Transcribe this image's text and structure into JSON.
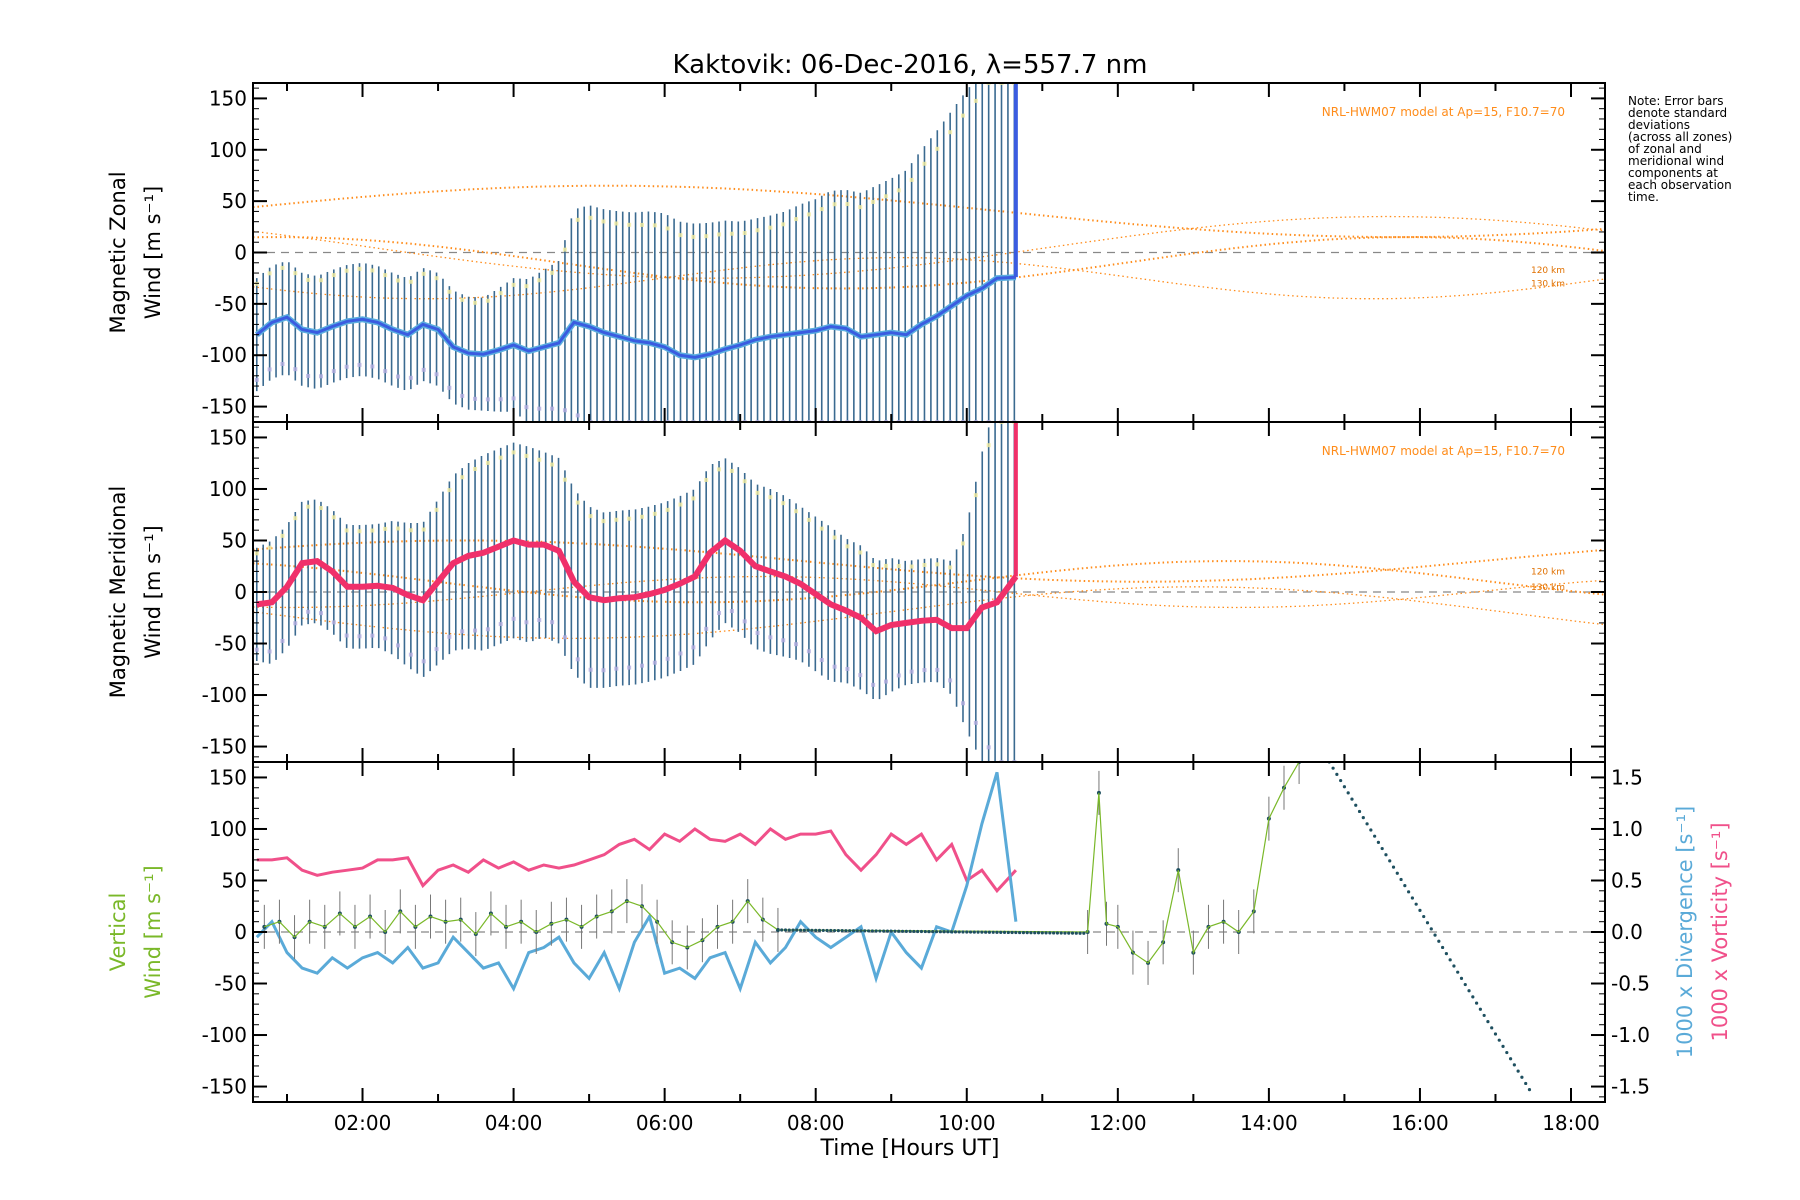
{
  "title": "Kaktovik: 06-Dec-2016, λ=557.7 nm",
  "xlabel": "Time [Hours UT]",
  "x_ticks": [
    "02:00",
    "04:00",
    "06:00",
    "08:00",
    "10:00",
    "12:00",
    "14:00",
    "16:00",
    "18:00"
  ],
  "note": [
    "Note: Error bars",
    "denote standard",
    "deviations",
    "(across all zones)",
    "of zonal and",
    "meridional wind",
    "components at",
    "each observation",
    "time."
  ],
  "colors": {
    "zonal": "#3a5ce0",
    "zonal_light": "#5aaee0",
    "meridional": "#f0306a",
    "vertical": "#7ab829",
    "divergence": "#5aaad8",
    "vorticity": "#f0508a",
    "model": "#ff8c1a",
    "errorbar": "#3a6a90",
    "zero": "#888888"
  },
  "chart_data": [
    {
      "type": "line",
      "panel": "zonal",
      "ylabel_line1": "Magnetic Zonal",
      "ylabel_line2": "Wind [m s⁻¹]",
      "ylim": [
        -165,
        165
      ],
      "xlim": [
        0.55,
        18.45
      ],
      "y_ticks": [
        "150",
        "100",
        "50",
        "0",
        "-50",
        "-100",
        "-150"
      ],
      "model_note": "NRL-HWM07 model at Ap=15, F10.7=70",
      "model_labels": [
        "120 km",
        "130 km"
      ],
      "series": [
        {
          "x": [
            0.6,
            0.8,
            1.0,
            1.2,
            1.4,
            1.6,
            1.8,
            2.0,
            2.2,
            2.4,
            2.6,
            2.8,
            3.0,
            3.2,
            3.4,
            3.6,
            3.8,
            4.0,
            4.2,
            4.4,
            4.6,
            4.8,
            5.0,
            5.2,
            5.4,
            5.6,
            5.8,
            6.0,
            6.2,
            6.4,
            6.6,
            6.8,
            7.0,
            7.2,
            7.4,
            7.6,
            7.8,
            8.0,
            8.2,
            8.4,
            8.6,
            8.8,
            9.0,
            9.2,
            9.4,
            9.6,
            9.8,
            10.0,
            10.2,
            10.4,
            10.65
          ],
          "y": [
            -80,
            -68,
            -63,
            -75,
            -78,
            -72,
            -67,
            -65,
            -68,
            -75,
            -80,
            -70,
            -75,
            -92,
            -98,
            -99,
            -95,
            -90,
            -96,
            -92,
            -88,
            -68,
            -72,
            -78,
            -82,
            -86,
            -88,
            -92,
            -100,
            -102,
            -99,
            -94,
            -90,
            -85,
            -82,
            -80,
            -78,
            -76,
            -72,
            -74,
            -82,
            -80,
            -78,
            -80,
            -70,
            -62,
            -52,
            -42,
            -35,
            -25,
            -24
          ]
        }
      ],
      "error_extent": [
        55,
        55,
        55,
        55,
        55,
        55,
        55,
        55,
        55,
        55,
        55,
        55,
        55,
        55,
        55,
        55,
        60,
        65,
        70,
        75,
        80,
        110,
        118,
        120,
        122,
        125,
        128,
        130,
        130,
        130,
        128,
        125,
        120,
        118,
        118,
        120,
        125,
        128,
        132,
        135,
        140,
        145,
        150,
        160,
        170,
        180,
        190,
        200,
        210,
        230,
        240
      ]
    },
    {
      "type": "line",
      "panel": "meridional",
      "ylabel_line1": "Magnetic Meridional",
      "ylabel_line2": "Wind [m s⁻¹]",
      "ylim": [
        -165,
        165
      ],
      "xlim": [
        0.55,
        18.45
      ],
      "y_ticks": [
        "150",
        "100",
        "50",
        "0",
        "-50",
        "-100",
        "-150"
      ],
      "model_note": "NRL-HWM07 model at Ap=15, F10.7=70",
      "model_labels": [
        "120 km",
        "130 km"
      ],
      "series": [
        {
          "x": [
            0.6,
            0.8,
            1.0,
            1.2,
            1.4,
            1.6,
            1.8,
            2.0,
            2.2,
            2.4,
            2.6,
            2.8,
            3.0,
            3.2,
            3.4,
            3.6,
            3.8,
            4.0,
            4.2,
            4.4,
            4.6,
            4.8,
            5.0,
            5.2,
            5.4,
            5.6,
            5.8,
            6.0,
            6.2,
            6.4,
            6.6,
            6.8,
            7.0,
            7.2,
            7.4,
            7.6,
            7.8,
            8.0,
            8.2,
            8.4,
            8.6,
            8.8,
            9.0,
            9.2,
            9.4,
            9.6,
            9.8,
            10.0,
            10.2,
            10.4,
            10.65
          ],
          "y": [
            -12,
            -10,
            5,
            28,
            30,
            20,
            5,
            5,
            6,
            4,
            -3,
            -8,
            10,
            28,
            35,
            38,
            44,
            50,
            46,
            46,
            40,
            10,
            -5,
            -8,
            -6,
            -5,
            -2,
            2,
            8,
            15,
            38,
            50,
            40,
            25,
            20,
            15,
            8,
            -2,
            -12,
            -18,
            -25,
            -38,
            -32,
            -30,
            -28,
            -27,
            -35,
            -35,
            -15,
            -10,
            15
          ]
        }
      ],
      "error_extent": [
        55,
        60,
        60,
        60,
        60,
        60,
        60,
        60,
        60,
        65,
        70,
        75,
        80,
        85,
        90,
        95,
        95,
        95,
        95,
        90,
        90,
        90,
        88,
        85,
        85,
        85,
        85,
        85,
        85,
        85,
        85,
        80,
        80,
        80,
        80,
        78,
        75,
        75,
        75,
        70,
        70,
        68,
        65,
        60,
        60,
        60,
        65,
        100,
        150,
        200,
        240
      ]
    },
    {
      "type": "line",
      "panel": "vertical",
      "ylabel_line1": "Vertical",
      "ylabel_line2": "Wind [m s⁻¹]",
      "ylim": [
        -165,
        165
      ],
      "xlim": [
        0.55,
        18.45
      ],
      "y_ticks": [
        "150",
        "100",
        "50",
        "0",
        "-50",
        "-100",
        "-150"
      ],
      "y2_ticks": [
        "1.5",
        "1.0",
        "0.5",
        "0.0",
        "-0.5",
        "-1.0",
        "-1.5"
      ],
      "y2lim": [
        -1.65,
        1.65
      ],
      "y2label_divergence": "1000 x Divergence [s⁻¹]",
      "y2label_vorticity": "1000 x Vorticity [s⁻¹]",
      "series": [
        {
          "name": "vertical",
          "x": [
            0.7,
            0.9,
            1.1,
            1.3,
            1.5,
            1.7,
            1.9,
            2.1,
            2.3,
            2.5,
            2.7,
            2.9,
            3.1,
            3.3,
            3.5,
            3.7,
            3.9,
            4.1,
            4.3,
            4.5,
            4.7,
            4.9,
            5.1,
            5.3,
            5.5,
            5.7,
            5.9,
            6.1,
            6.3,
            6.5,
            6.7,
            6.9,
            7.1,
            7.3,
            7.5,
            11.6,
            11.75,
            11.85,
            12.0,
            12.2,
            12.4,
            12.6,
            12.8,
            13.0,
            13.2,
            13.4,
            13.6,
            13.8,
            14.0,
            14.2,
            14.4
          ],
          "y": [
            5,
            10,
            -5,
            10,
            5,
            18,
            5,
            15,
            0,
            20,
            5,
            15,
            10,
            12,
            -2,
            18,
            5,
            10,
            0,
            8,
            12,
            5,
            15,
            20,
            30,
            25,
            10,
            -10,
            -15,
            -8,
            5,
            10,
            30,
            12,
            2,
            0,
            135,
            8,
            5,
            -20,
            -30,
            -10,
            60,
            -20,
            5,
            10,
            0,
            20,
            110,
            140,
            165
          ]
        },
        {
          "name": "divergence",
          "x": [
            0.6,
            0.8,
            1.0,
            1.2,
            1.4,
            1.6,
            1.8,
            2.0,
            2.2,
            2.4,
            2.6,
            2.8,
            3.0,
            3.2,
            3.4,
            3.6,
            3.8,
            4.0,
            4.2,
            4.4,
            4.6,
            4.8,
            5.0,
            5.2,
            5.4,
            5.6,
            5.8,
            6.0,
            6.2,
            6.4,
            6.6,
            6.8,
            7.0,
            7.2,
            7.4,
            7.6,
            7.8,
            8.0,
            8.2,
            8.4,
            8.6,
            8.8,
            9.0,
            9.2,
            9.4,
            9.6,
            9.8,
            10.0,
            10.2,
            10.4,
            10.65
          ],
          "y": [
            -0.05,
            0.1,
            -0.2,
            -0.35,
            -0.4,
            -0.25,
            -0.35,
            -0.25,
            -0.2,
            -0.3,
            -0.15,
            -0.35,
            -0.3,
            -0.05,
            -0.2,
            -0.35,
            -0.3,
            -0.55,
            -0.2,
            -0.15,
            -0.05,
            -0.3,
            -0.45,
            -0.2,
            -0.55,
            -0.1,
            0.15,
            -0.4,
            -0.35,
            -0.45,
            -0.25,
            -0.2,
            -0.55,
            -0.1,
            -0.3,
            -0.15,
            0.1,
            -0.05,
            -0.15,
            -0.05,
            0.05,
            -0.45,
            0.0,
            -0.2,
            -0.35,
            0.05,
            0.0,
            0.45,
            1.05,
            1.55,
            0.1
          ]
        },
        {
          "name": "vorticity",
          "x": [
            0.6,
            0.8,
            1.0,
            1.2,
            1.4,
            1.6,
            1.8,
            2.0,
            2.2,
            2.4,
            2.6,
            2.8,
            3.0,
            3.2,
            3.4,
            3.6,
            3.8,
            4.0,
            4.2,
            4.4,
            4.6,
            4.8,
            5.0,
            5.2,
            5.4,
            5.6,
            5.8,
            6.0,
            6.2,
            6.4,
            6.6,
            6.8,
            7.0,
            7.2,
            7.4,
            7.6,
            7.8,
            8.0,
            8.2,
            8.4,
            8.6,
            8.8,
            9.0,
            9.2,
            9.4,
            9.6,
            9.8,
            10.0,
            10.2,
            10.4,
            10.65
          ],
          "y": [
            0.7,
            0.7,
            0.72,
            0.6,
            0.55,
            0.58,
            0.6,
            0.62,
            0.7,
            0.7,
            0.72,
            0.45,
            0.6,
            0.65,
            0.58,
            0.7,
            0.62,
            0.68,
            0.6,
            0.65,
            0.62,
            0.65,
            0.7,
            0.75,
            0.85,
            0.9,
            0.8,
            0.95,
            0.88,
            1.0,
            0.9,
            0.88,
            0.95,
            0.85,
            1.0,
            0.9,
            0.95,
            0.95,
            0.98,
            0.75,
            0.6,
            0.75,
            0.95,
            0.85,
            0.95,
            0.7,
            0.85,
            0.5,
            0.6,
            0.4,
            0.6
          ]
        }
      ]
    }
  ]
}
